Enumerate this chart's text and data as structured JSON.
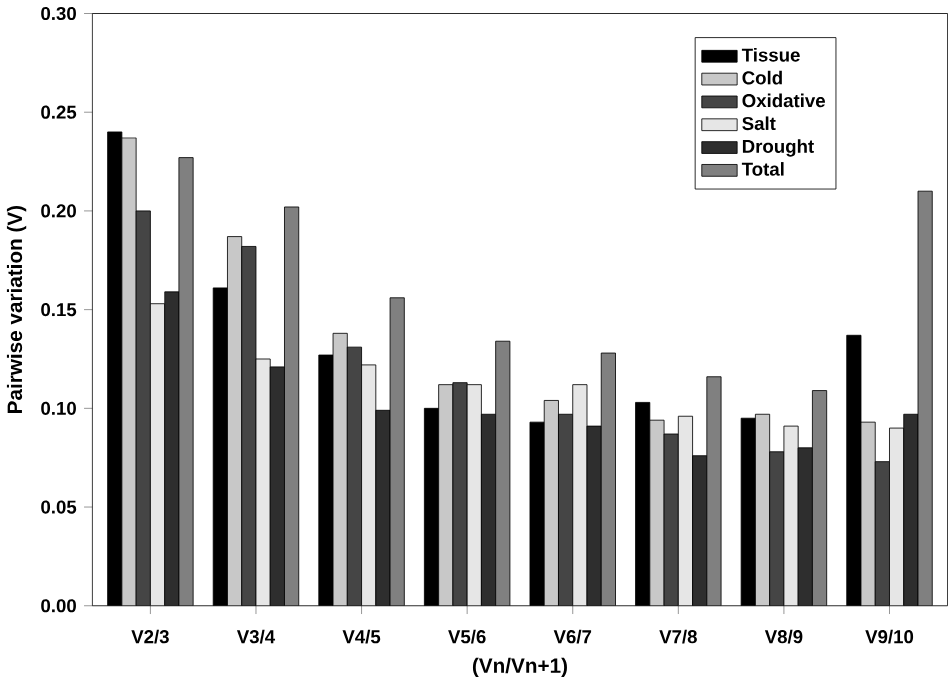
{
  "chart_data": {
    "type": "bar",
    "xlabel": "(Vn/Vn+1)",
    "ylabel": "Pairwise variation (V)",
    "categories": [
      "V2/3",
      "V3/4",
      "V4/5",
      "V5/6",
      "V6/7",
      "V7/8",
      "V8/9",
      "V9/10"
    ],
    "series": [
      {
        "name": "Tissue",
        "color": "#000000",
        "values": [
          0.24,
          0.161,
          0.127,
          0.1,
          0.093,
          0.103,
          0.095,
          0.137
        ]
      },
      {
        "name": "Cold",
        "color": "#c8c8c8",
        "values": [
          0.237,
          0.187,
          0.138,
          0.112,
          0.104,
          0.094,
          0.097,
          0.093
        ]
      },
      {
        "name": "Oxidative",
        "color": "#454545",
        "values": [
          0.2,
          0.182,
          0.131,
          0.113,
          0.097,
          0.087,
          0.078,
          0.073
        ]
      },
      {
        "name": "Salt",
        "color": "#e6e6e6",
        "values": [
          0.153,
          0.125,
          0.122,
          0.112,
          0.112,
          0.096,
          0.091,
          0.09
        ]
      },
      {
        "name": "Drought",
        "color": "#2e2e2e",
        "values": [
          0.159,
          0.121,
          0.099,
          0.097,
          0.091,
          0.076,
          0.08,
          0.097
        ]
      },
      {
        "name": "Total",
        "color": "#808080",
        "values": [
          0.227,
          0.202,
          0.156,
          0.134,
          0.128,
          0.116,
          0.109,
          0.21
        ]
      }
    ],
    "ylim": [
      0,
      0.3
    ],
    "yticks": [
      {
        "value": 0,
        "label": "0.00"
      },
      {
        "value": 0.05,
        "label": "0.05"
      },
      {
        "value": 0.1,
        "label": "0.10"
      },
      {
        "value": 0.15,
        "label": "0.15"
      },
      {
        "value": 0.2,
        "label": "0.20"
      },
      {
        "value": 0.25,
        "label": "0.25"
      },
      {
        "value": 0.3,
        "label": "0.30"
      }
    ],
    "legend": "top right",
    "grid": false
  }
}
